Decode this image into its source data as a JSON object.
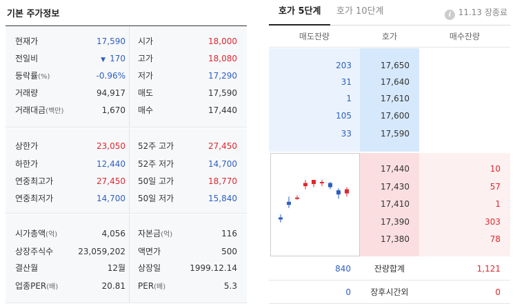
{
  "left": {
    "title": "기본 주가정보",
    "sec1": [
      {
        "label": "현재가",
        "value": "17,590",
        "vcolor": "blue",
        "label2": "시가",
        "value2": "18,000",
        "v2color": "red"
      },
      {
        "label": "전일비",
        "arrow": "▼",
        "value": "170",
        "vcolor": "blue",
        "label2": "고가",
        "value2": "18,080",
        "v2color": "red"
      },
      {
        "label": "등락률",
        "label_sub": "(%)",
        "value": "-0.96%",
        "vcolor": "blue",
        "label2": "저가",
        "value2": "17,290",
        "v2color": "blue"
      },
      {
        "label": "거래량",
        "value": "94,917",
        "vcolor": "dark",
        "label2": "매도",
        "value2": "17,590",
        "v2color": "dark"
      },
      {
        "label": "거래대금",
        "label_sub": "(백만)",
        "value": "1,670",
        "vcolor": "dark",
        "label2": "매수",
        "value2": "17,440",
        "v2color": "dark"
      }
    ],
    "sec2": [
      {
        "label": "상한가",
        "value": "23,050",
        "vcolor": "red",
        "label2": "52주 고가",
        "value2": "27,450",
        "v2color": "red"
      },
      {
        "label": "하한가",
        "value": "12,440",
        "vcolor": "blue",
        "label2": "52주 저가",
        "value2": "14,700",
        "v2color": "blue"
      },
      {
        "label": "연중최고가",
        "value": "27,450",
        "vcolor": "red",
        "label2": "50일 고가",
        "value2": "18,770",
        "v2color": "red"
      },
      {
        "label": "연중최저가",
        "value": "14,700",
        "vcolor": "blue",
        "label2": "50일 저가",
        "value2": "15,840",
        "v2color": "blue"
      }
    ],
    "sec3": [
      {
        "label": "시가총액",
        "label_sub": "(억)",
        "value": "4,056",
        "vcolor": "dark",
        "label2": "자본금",
        "label2_sub": "(억)",
        "value2": "116",
        "v2color": "dark"
      },
      {
        "label": "상장주식수",
        "value": "23,059,202",
        "vcolor": "dark",
        "label2": "액면가",
        "value2": "500",
        "v2color": "dark"
      },
      {
        "label": "결산월",
        "value": "12월",
        "vcolor": "dark",
        "label2": "상장일",
        "value2": "1999.12.14",
        "v2color": "dark"
      },
      {
        "label": "업종PER",
        "label_sub": "(배)",
        "value": "20.81",
        "vcolor": "dark",
        "label2": "PER",
        "label2_sub": "(배)",
        "value2": "5.3",
        "v2color": "dark"
      }
    ]
  },
  "right": {
    "tabs": [
      "호가 5단계",
      "호가 10단계"
    ],
    "status": "11.13 장종료",
    "headers": [
      "매도잔량",
      "호가",
      "매수잔량"
    ],
    "sell": [
      {
        "qty": "203",
        "price": "17,650"
      },
      {
        "qty": "31",
        "price": "17,640"
      },
      {
        "qty": "1",
        "price": "17,610"
      },
      {
        "qty": "105",
        "price": "17,600"
      },
      {
        "qty": "33",
        "price": "17,590"
      }
    ],
    "buy": [
      {
        "price": "17,440",
        "qty": "10"
      },
      {
        "price": "17,430",
        "qty": "57"
      },
      {
        "price": "17,410",
        "qty": "1"
      },
      {
        "price": "17,390",
        "qty": "303"
      },
      {
        "price": "17,380",
        "qty": "78"
      }
    ],
    "summary": [
      {
        "sell": "840",
        "label": "잔량합계",
        "buy": "1,121"
      },
      {
        "sell": "0",
        "label": "장후시간외",
        "buy": "0"
      }
    ],
    "candles": [
      {
        "o": 17300,
        "h": 17330,
        "l": 17250,
        "c": 17280
      },
      {
        "o": 17450,
        "h": 17500,
        "l": 17390,
        "c": 17420
      },
      {
        "o": 17490,
        "h": 17510,
        "l": 17470,
        "c": 17490
      },
      {
        "o": 17600,
        "h": 17660,
        "l": 17570,
        "c": 17630
      },
      {
        "o": 17620,
        "h": 17660,
        "l": 17590,
        "c": 17660
      },
      {
        "o": 17640,
        "h": 17660,
        "l": 17600,
        "c": 17640
      },
      {
        "o": 17630,
        "h": 17640,
        "l": 17570,
        "c": 17590
      },
      {
        "o": 17560,
        "h": 17580,
        "l": 17480,
        "c": 17520
      },
      {
        "o": 17530,
        "h": 17590,
        "l": 17500,
        "c": 17570
      }
    ],
    "colors": {
      "up": "#e0262e",
      "down": "#2d5fc2"
    }
  }
}
